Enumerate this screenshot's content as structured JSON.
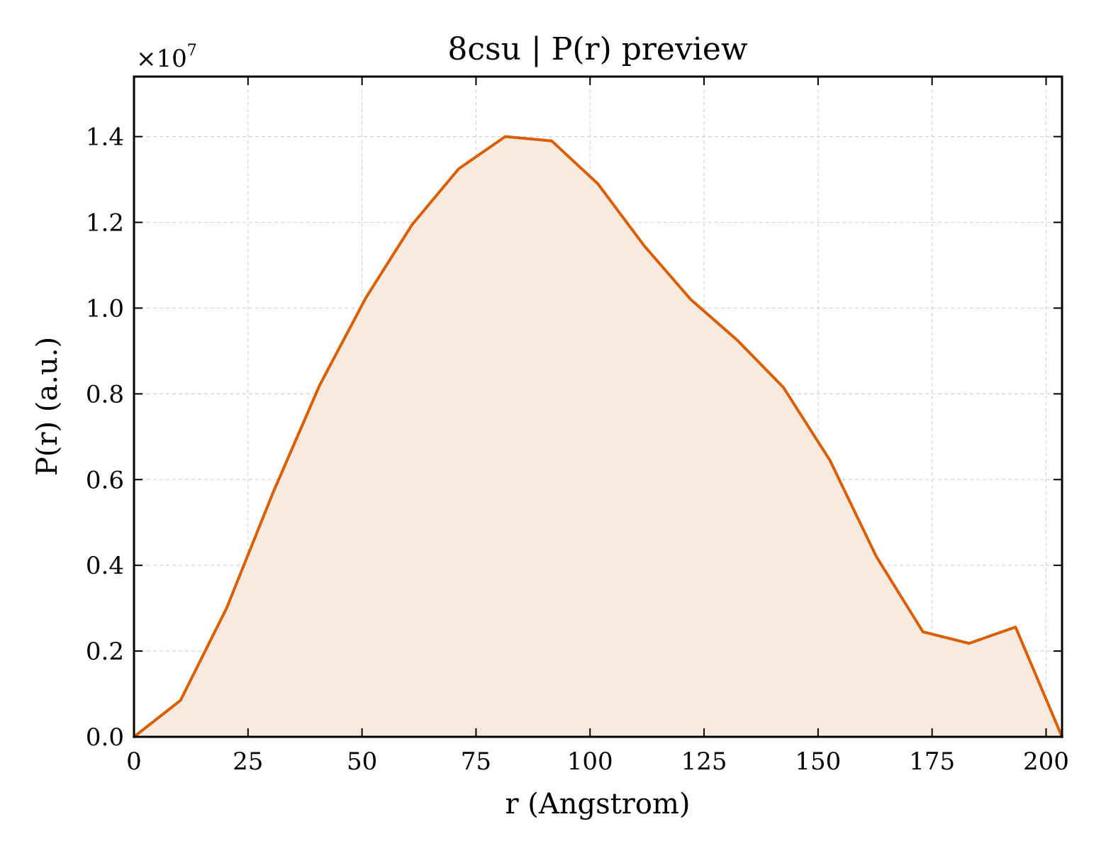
{
  "chart_data": {
    "type": "area",
    "title": "8csu | P(r) preview",
    "xlabel": "r (Angstrom)",
    "ylabel": "P(r) (a.u.)",
    "y_multiplier": {
      "base": "×10",
      "exponent": "7"
    },
    "xlim": [
      0,
      203.5
    ],
    "ylim": [
      0,
      1.54
    ],
    "x_ticks": [
      0,
      25,
      50,
      75,
      100,
      125,
      150,
      175,
      200
    ],
    "x_tick_labels": [
      "0",
      "25",
      "50",
      "75",
      "100",
      "125",
      "150",
      "175",
      "200"
    ],
    "y_ticks": [
      0.0,
      0.2,
      0.4,
      0.6,
      0.8,
      1.0,
      1.2,
      1.4
    ],
    "y_tick_labels": [
      "0.0",
      "0.2",
      "0.4",
      "0.6",
      "0.8",
      "1.0",
      "1.2",
      "1.4"
    ],
    "grid": true,
    "line_color": "#d95f02",
    "fill_color": "#f9eadf",
    "series": [
      {
        "x": [
          0,
          10.2,
          20.3,
          30.5,
          40.7,
          50.9,
          61.0,
          71.2,
          81.4,
          91.6,
          101.7,
          111.9,
          122.1,
          132.3,
          142.4,
          152.6,
          162.8,
          173.0,
          183.1,
          193.3,
          203.5
        ],
        "values": [
          0.0,
          0.085,
          0.3,
          0.57,
          0.82,
          1.025,
          1.195,
          1.325,
          1.4,
          1.39,
          1.29,
          1.145,
          1.02,
          0.925,
          0.815,
          0.645,
          0.42,
          0.245,
          0.218,
          0.256,
          0.0
        ]
      }
    ]
  }
}
